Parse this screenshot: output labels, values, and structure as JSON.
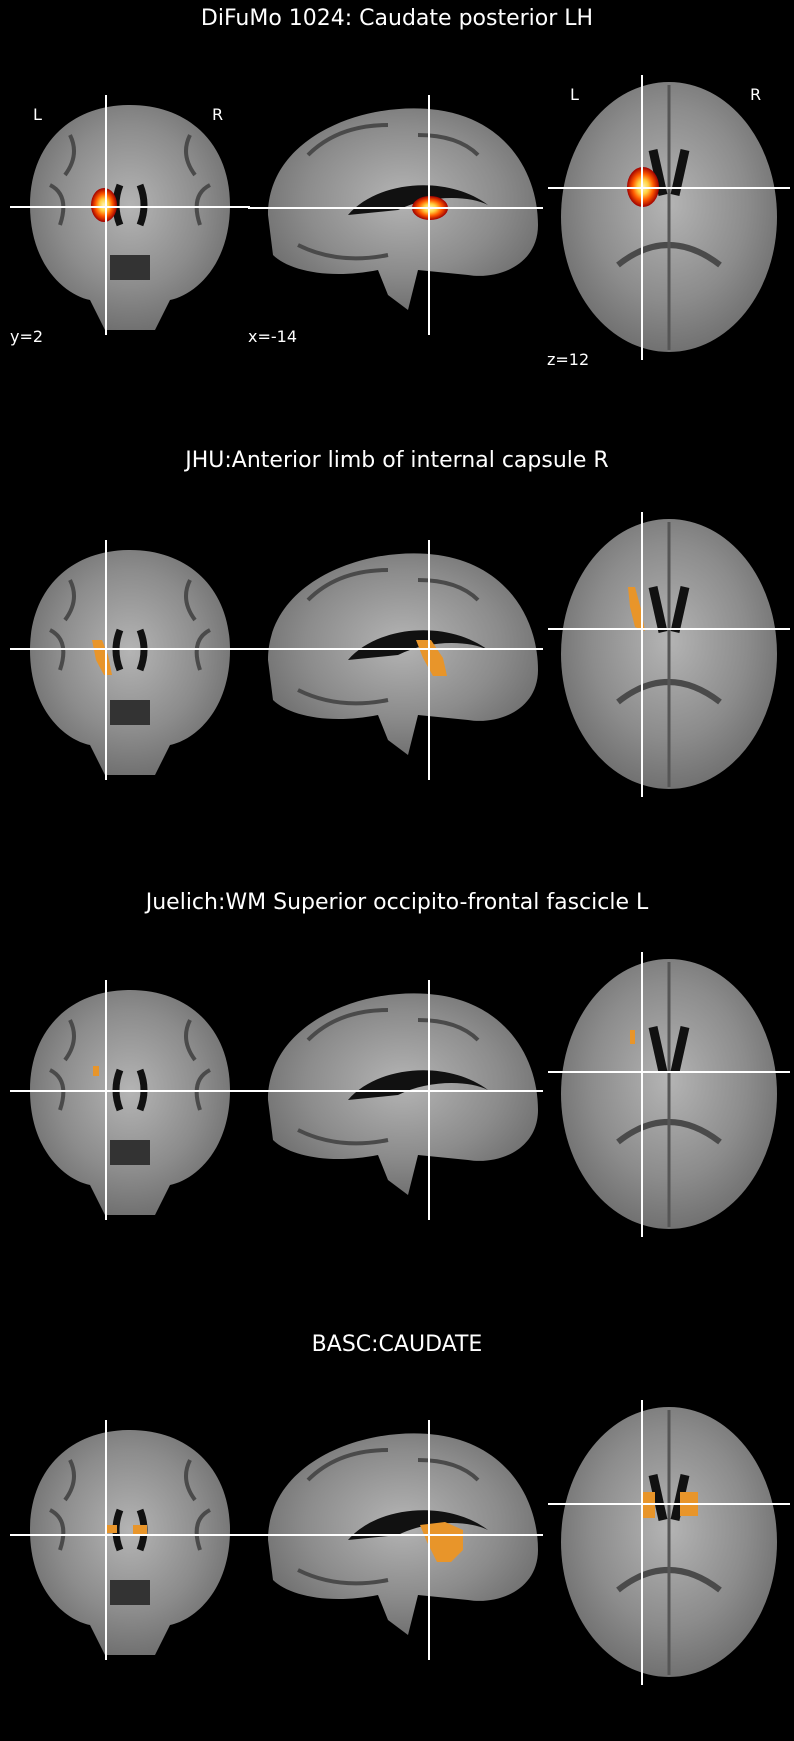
{
  "panels": [
    {
      "title": "DiFuMo 1024: Caudate posterior LH",
      "overlay": "heat",
      "orientation": {
        "left": "L",
        "right": "R"
      },
      "coords": {
        "y": "y=2",
        "x": "x=-14",
        "z": "z=12"
      }
    },
    {
      "title": "JHU:Anterior limb of internal capsule R",
      "overlay": "orange"
    },
    {
      "title": "Juelich:WM Superior occipito-frontal fascicle L",
      "overlay": "orange"
    },
    {
      "title": "BASC:CAUDATE",
      "overlay": "orange"
    }
  ],
  "colors": {
    "background": "#000000",
    "crosshair": "#ffffff",
    "overlay_orange": "#e8952a",
    "heat_outer": "#a00000",
    "heat_mid": "#ff5a00",
    "heat_inner": "#ffe860"
  }
}
